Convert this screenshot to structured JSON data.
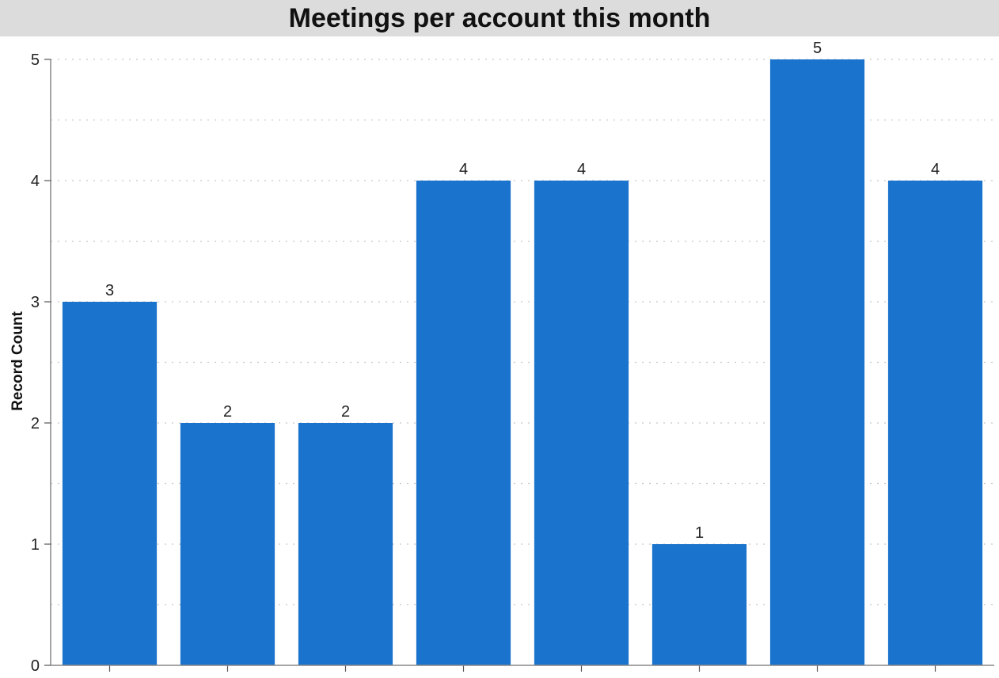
{
  "chart_data": {
    "type": "bar",
    "title": "Meetings per account this month",
    "xlabel": "",
    "ylabel": "Record Count",
    "categories": [
      "",
      "",
      "",
      "",
      "",
      "",
      "",
      ""
    ],
    "values": [
      3,
      2,
      2,
      4,
      4,
      1,
      5,
      4
    ],
    "ylim": [
      0,
      5
    ],
    "yticks": [
      0,
      1,
      2,
      3,
      4,
      5
    ],
    "grid": true,
    "bar_color": "#1a73cc",
    "title_background": "#dcdcdc"
  }
}
